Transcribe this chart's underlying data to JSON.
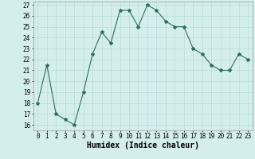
{
  "x": [
    0,
    1,
    2,
    3,
    4,
    5,
    6,
    7,
    8,
    9,
    10,
    11,
    12,
    13,
    14,
    15,
    16,
    17,
    18,
    19,
    20,
    21,
    22,
    23
  ],
  "y": [
    18.0,
    21.5,
    17.0,
    16.5,
    16.0,
    19.0,
    22.5,
    24.5,
    23.5,
    26.5,
    26.5,
    25.0,
    27.0,
    26.5,
    25.5,
    25.0,
    25.0,
    23.0,
    22.5,
    21.5,
    21.0,
    21.0,
    22.5,
    22.0
  ],
  "line_color": "#2d6e5e",
  "bg_color": "#d4eeeb",
  "grid_color": "#b8ddd8",
  "xlabel": "Humidex (Indice chaleur)",
  "ylim_min": 15.5,
  "ylim_max": 27.3,
  "xlim_min": -0.5,
  "xlim_max": 23.5,
  "yticks": [
    16,
    17,
    18,
    19,
    20,
    21,
    22,
    23,
    24,
    25,
    26,
    27
  ],
  "xticks": [
    0,
    1,
    2,
    3,
    4,
    5,
    6,
    7,
    8,
    9,
    10,
    11,
    12,
    13,
    14,
    15,
    16,
    17,
    18,
    19,
    20,
    21,
    22,
    23
  ],
  "tick_fontsize": 5.5,
  "xlabel_fontsize": 7,
  "marker": "*",
  "marker_size": 3,
  "line_width": 0.8,
  "spine_color": "#999999"
}
